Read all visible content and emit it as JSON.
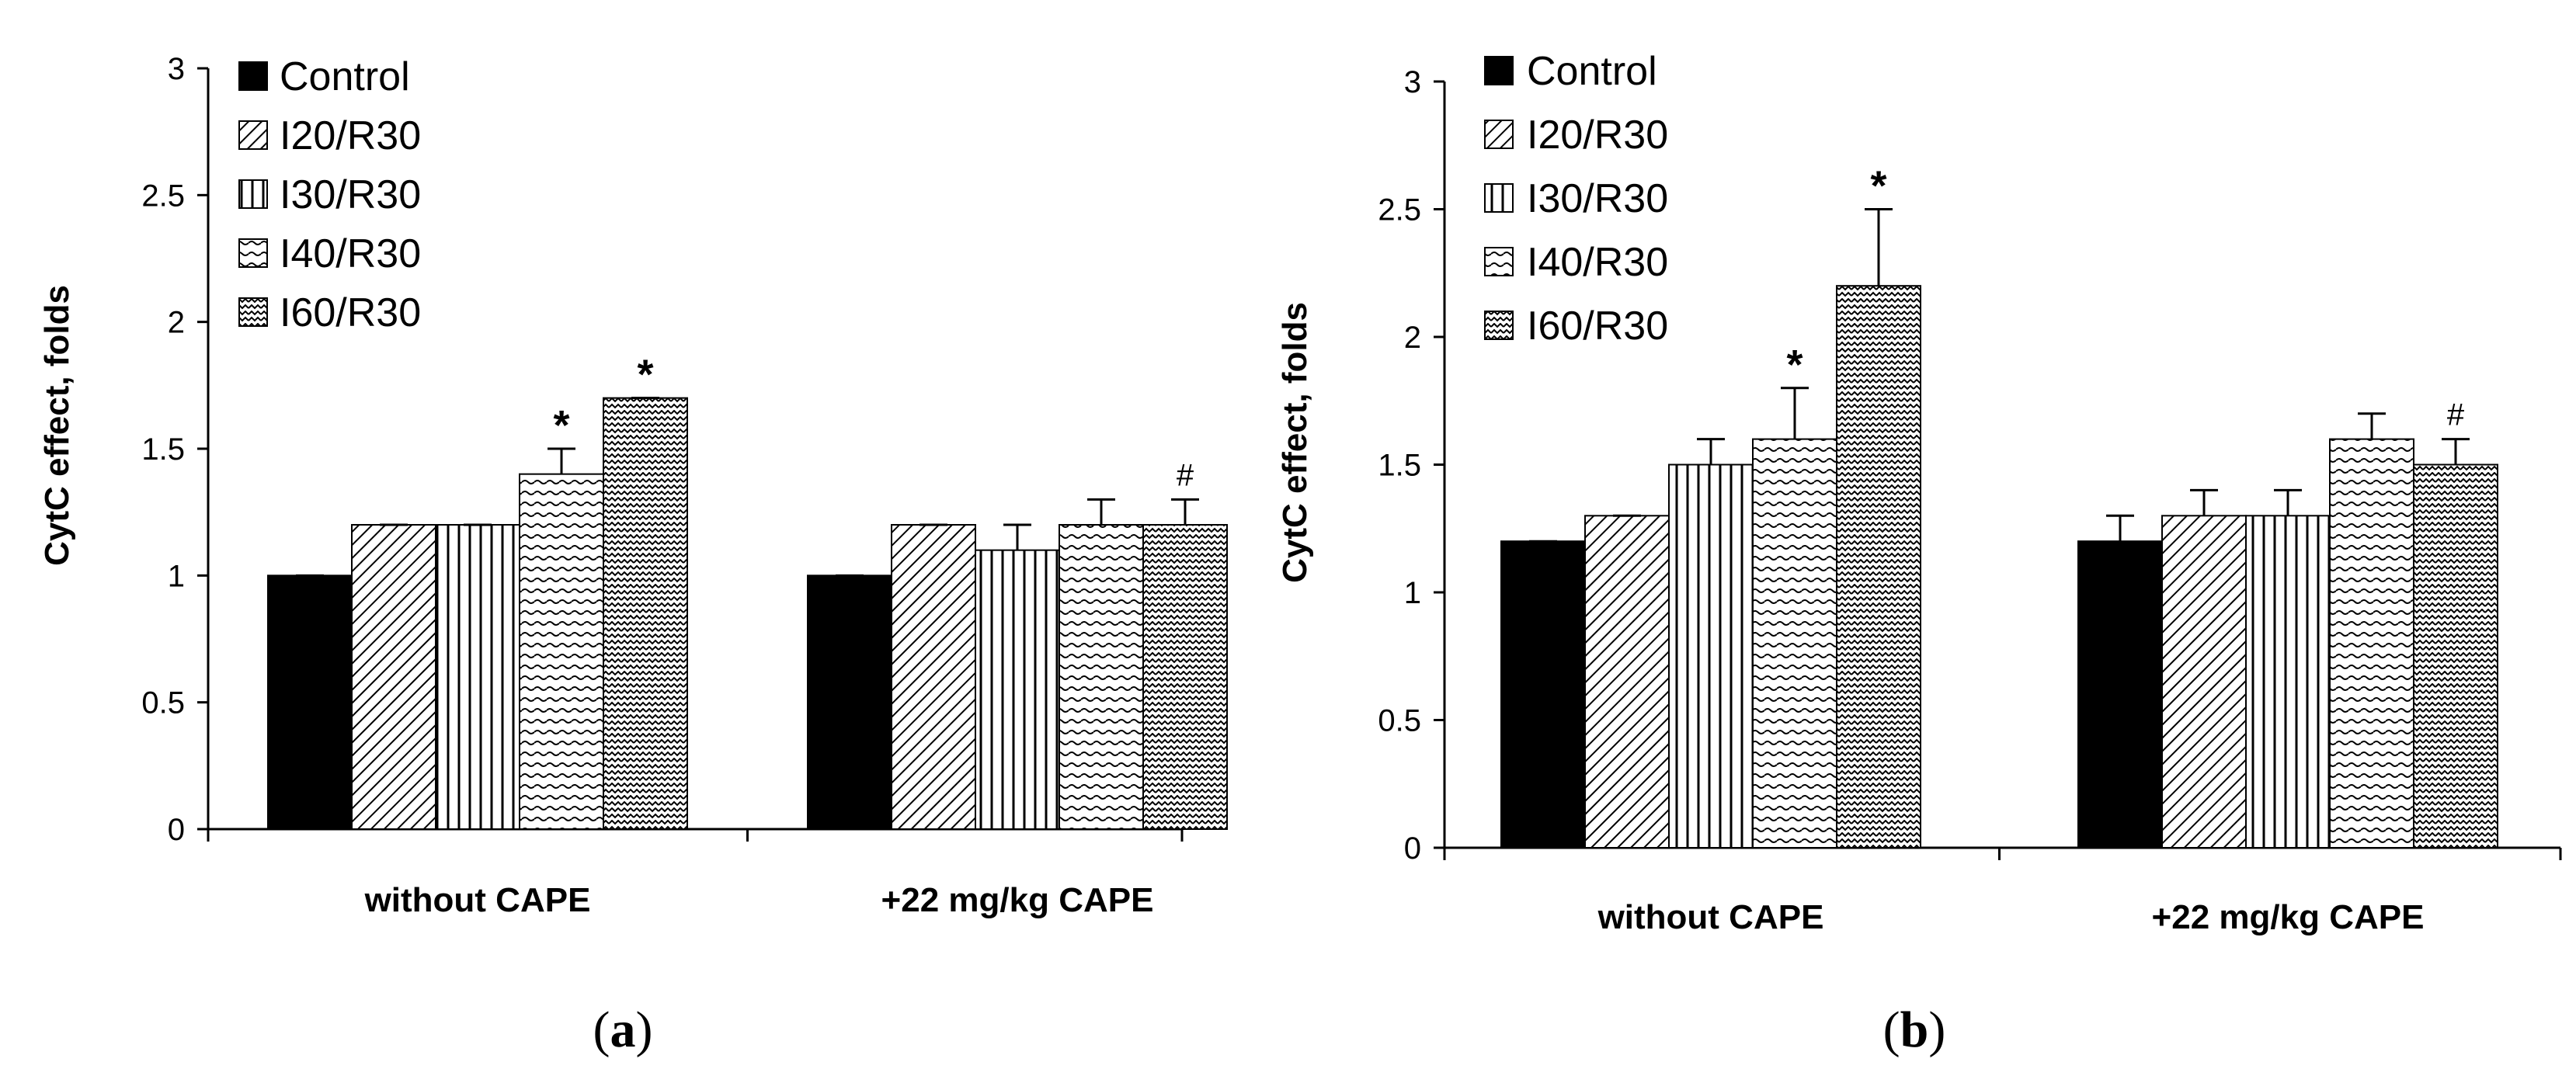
{
  "colors": {
    "ink": "#000000",
    "background": "#ffffff"
  },
  "chart_data": [
    {
      "type": "bar",
      "panel_label": "a",
      "title": "",
      "ylabel": "CytC effect, folds",
      "xlabel": "",
      "ylim": [
        0,
        3
      ],
      "yticks": [
        0,
        0.5,
        1,
        1.5,
        2,
        2.5,
        3
      ],
      "ytick_labels": [
        "0",
        "0.5",
        "1",
        "1.5",
        "2",
        "2.5",
        "3"
      ],
      "categories": [
        "without CAPE",
        "+22 mg/kg CAPE"
      ],
      "legend_position": "top-left",
      "series": [
        {
          "name": "Control",
          "pattern": "solid",
          "values": [
            1.0,
            1.0
          ],
          "errors": [
            0.0,
            0.0
          ],
          "annotations": [
            "",
            ""
          ]
        },
        {
          "name": "I20/R30",
          "pattern": "diagonal",
          "values": [
            1.2,
            1.2
          ],
          "errors": [
            0.0,
            0.0
          ],
          "annotations": [
            "",
            ""
          ]
        },
        {
          "name": "I30/R30",
          "pattern": "vertical",
          "values": [
            1.2,
            1.1
          ],
          "errors": [
            0.0,
            0.1
          ],
          "annotations": [
            "",
            ""
          ]
        },
        {
          "name": "I40/R30",
          "pattern": "wave",
          "values": [
            1.4,
            1.2
          ],
          "errors": [
            0.1,
            0.1
          ],
          "annotations": [
            "*",
            ""
          ]
        },
        {
          "name": "I60/R30",
          "pattern": "zigzag",
          "values": [
            1.7,
            1.2
          ],
          "errors": [
            0.0,
            0.1
          ],
          "annotations": [
            "*",
            "#"
          ]
        }
      ]
    },
    {
      "type": "bar",
      "panel_label": "b",
      "title": "",
      "ylabel": "CytC effect, folds",
      "xlabel": "",
      "ylim": [
        0,
        3
      ],
      "yticks": [
        0,
        0.5,
        1,
        1.5,
        2,
        2.5,
        3
      ],
      "ytick_labels": [
        "0",
        "0.5",
        "1",
        "1.5",
        "2",
        "2.5",
        "3"
      ],
      "categories": [
        "without CAPE",
        "+22 mg/kg CAPE"
      ],
      "legend_position": "top-left",
      "series": [
        {
          "name": "Control",
          "pattern": "solid",
          "values": [
            1.2,
            1.2
          ],
          "errors": [
            0.0,
            0.1
          ],
          "annotations": [
            "",
            ""
          ]
        },
        {
          "name": "I20/R30",
          "pattern": "diagonal",
          "values": [
            1.3,
            1.3
          ],
          "errors": [
            0.0,
            0.1
          ],
          "annotations": [
            "",
            ""
          ]
        },
        {
          "name": "I30/R30",
          "pattern": "vertical",
          "values": [
            1.5,
            1.3
          ],
          "errors": [
            0.1,
            0.1
          ],
          "annotations": [
            "",
            ""
          ]
        },
        {
          "name": "I40/R30",
          "pattern": "wave",
          "values": [
            1.6,
            1.6
          ],
          "errors": [
            0.2,
            0.1
          ],
          "annotations": [
            "*",
            ""
          ]
        },
        {
          "name": "I60/R30",
          "pattern": "zigzag",
          "values": [
            2.2,
            1.5
          ],
          "errors": [
            0.3,
            0.1
          ],
          "annotations": [
            "*",
            "#"
          ]
        }
      ]
    }
  ]
}
